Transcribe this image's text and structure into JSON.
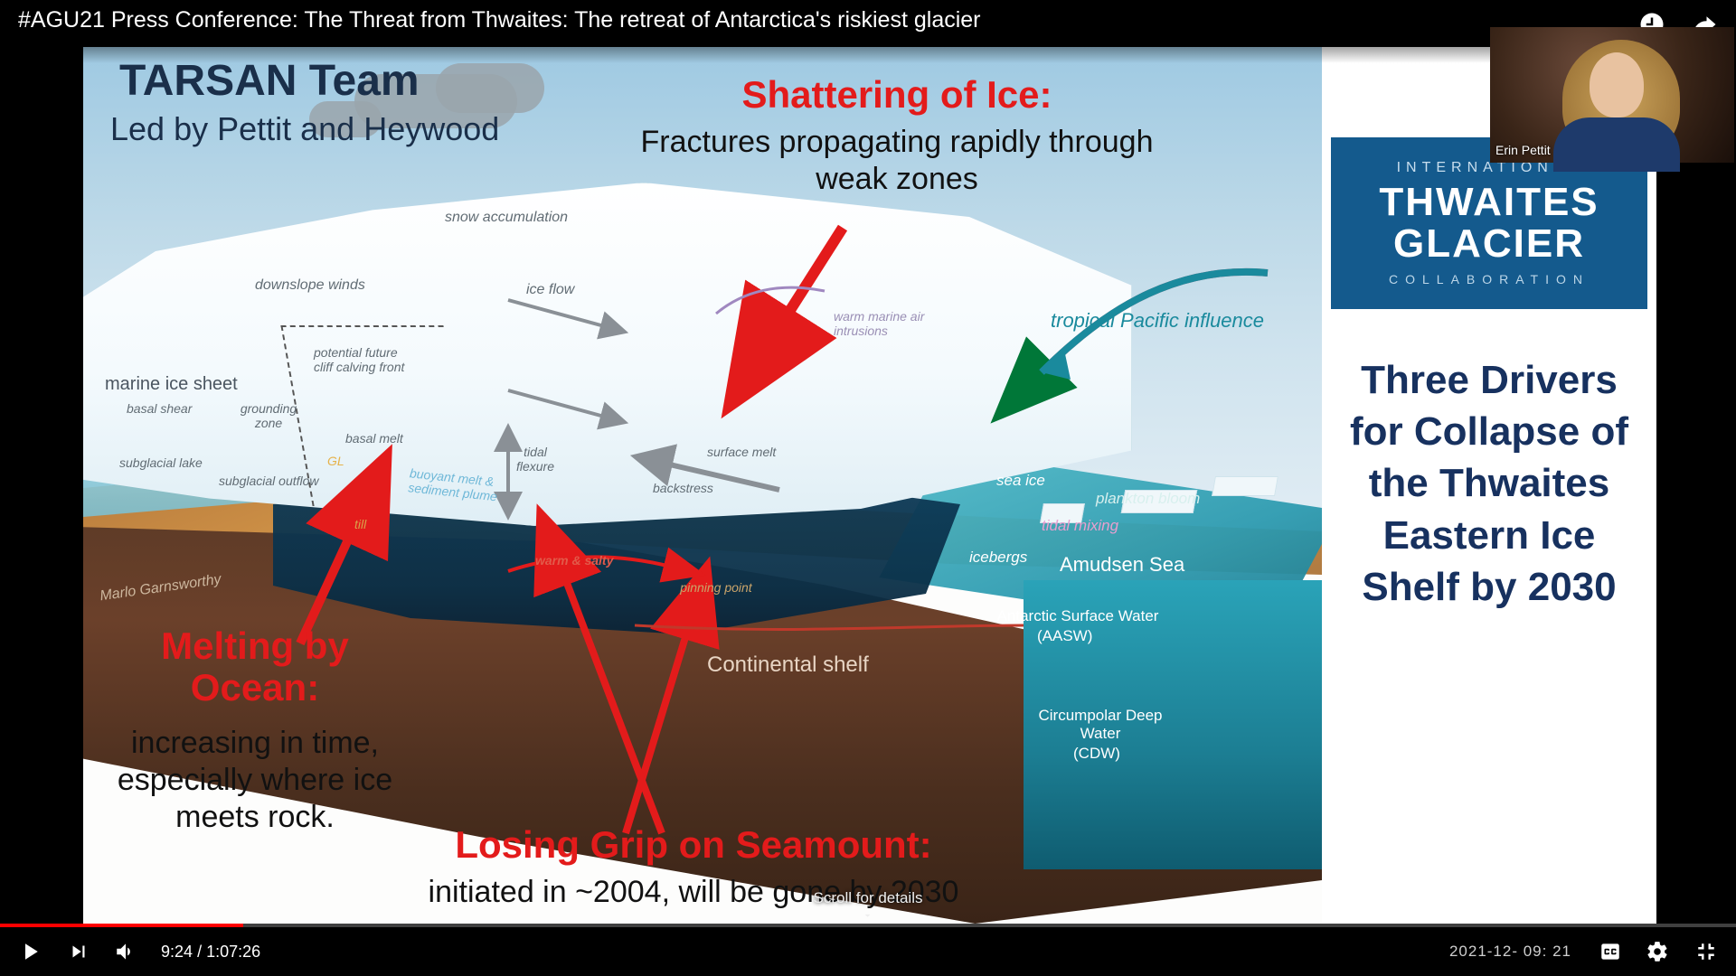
{
  "video": {
    "title": "#AGU21 Press Conference: The Threat from Thwaites: The retreat of Antarctica's riskiest glacier",
    "current_time": "9:24",
    "duration": "1:07:26",
    "overlay_timestamp": "2021-12-          09:      21",
    "scroll_hint": "Scroll for details",
    "progress_pct": 14.0
  },
  "pip": {
    "speaker_name": "Erin Pettit"
  },
  "brand": {
    "line1": "INTERNATIONAL",
    "line2a": "THWAITES",
    "line2b": "GLACIER",
    "line3": "COLLABORATION"
  },
  "side_headline": "Three Drivers for Collapse of the Thwaites Eastern Ice Shelf by 2030",
  "slide_heading": {
    "team": "TARSAN Team",
    "subteam": "Led by Pettit and Heywood"
  },
  "annotations": {
    "shatter_title": "Shattering of Ice:",
    "shatter_body": "Fractures propagating rapidly through weak zones",
    "melt_title": "Melting by Ocean:",
    "melt_body": "increasing in time, especially where ice meets rock.",
    "seamount_title": "Losing Grip on Seamount:",
    "seamount_body": "initiated in ~2004, will be gone by 2030",
    "tropical": "tropical Pacific influence"
  },
  "diagram_labels": {
    "snow": "snow accumulation",
    "downslope": "downslope winds",
    "iceflow": "ice flow",
    "marine_ice_sheet": "marine ice sheet",
    "basal_shear": "basal shear",
    "grounding_zone": "grounding zone",
    "future_cliff": "potential future cliff calving front",
    "basal_melt": "basal melt",
    "tidal_flexure": "tidal flexure",
    "surface_melt": "surface melt",
    "backstress": "backstress",
    "subglacial_lake": "subglacial lake",
    "subglacial_outflow": "subglacial outflow",
    "gl": "GL",
    "buoyant": "buoyant melt & sediment plume",
    "till": "till",
    "warm_salty": "warm & salty",
    "pinning": "pinning point",
    "continental_shelf": "Continental shelf",
    "warm_air": "warm marine air intrusions",
    "sea_ice": "sea ice",
    "plankton": "plankton bloom",
    "tidal_mixing": "tidal mixing",
    "icebergs": "icebergs",
    "amundsen": "Amudsen Sea",
    "aasw1": "Antarctic Surface Water",
    "aasw2": "(AASW)",
    "cdw1": "Circumpolar Deep Water",
    "cdw2": "(CDW)",
    "credit": "Marlo Garnsworthy"
  },
  "colors": {
    "red": "#e31b1b",
    "navy": "#17315f",
    "brand": "#145a8d",
    "sky_top": "#9ec9e2",
    "sea": "#2aa3b8",
    "deep": "#0f5c70",
    "shelf": "#5a3a26",
    "ice": "#ffffff",
    "teal_text": "#1a8a9d"
  }
}
